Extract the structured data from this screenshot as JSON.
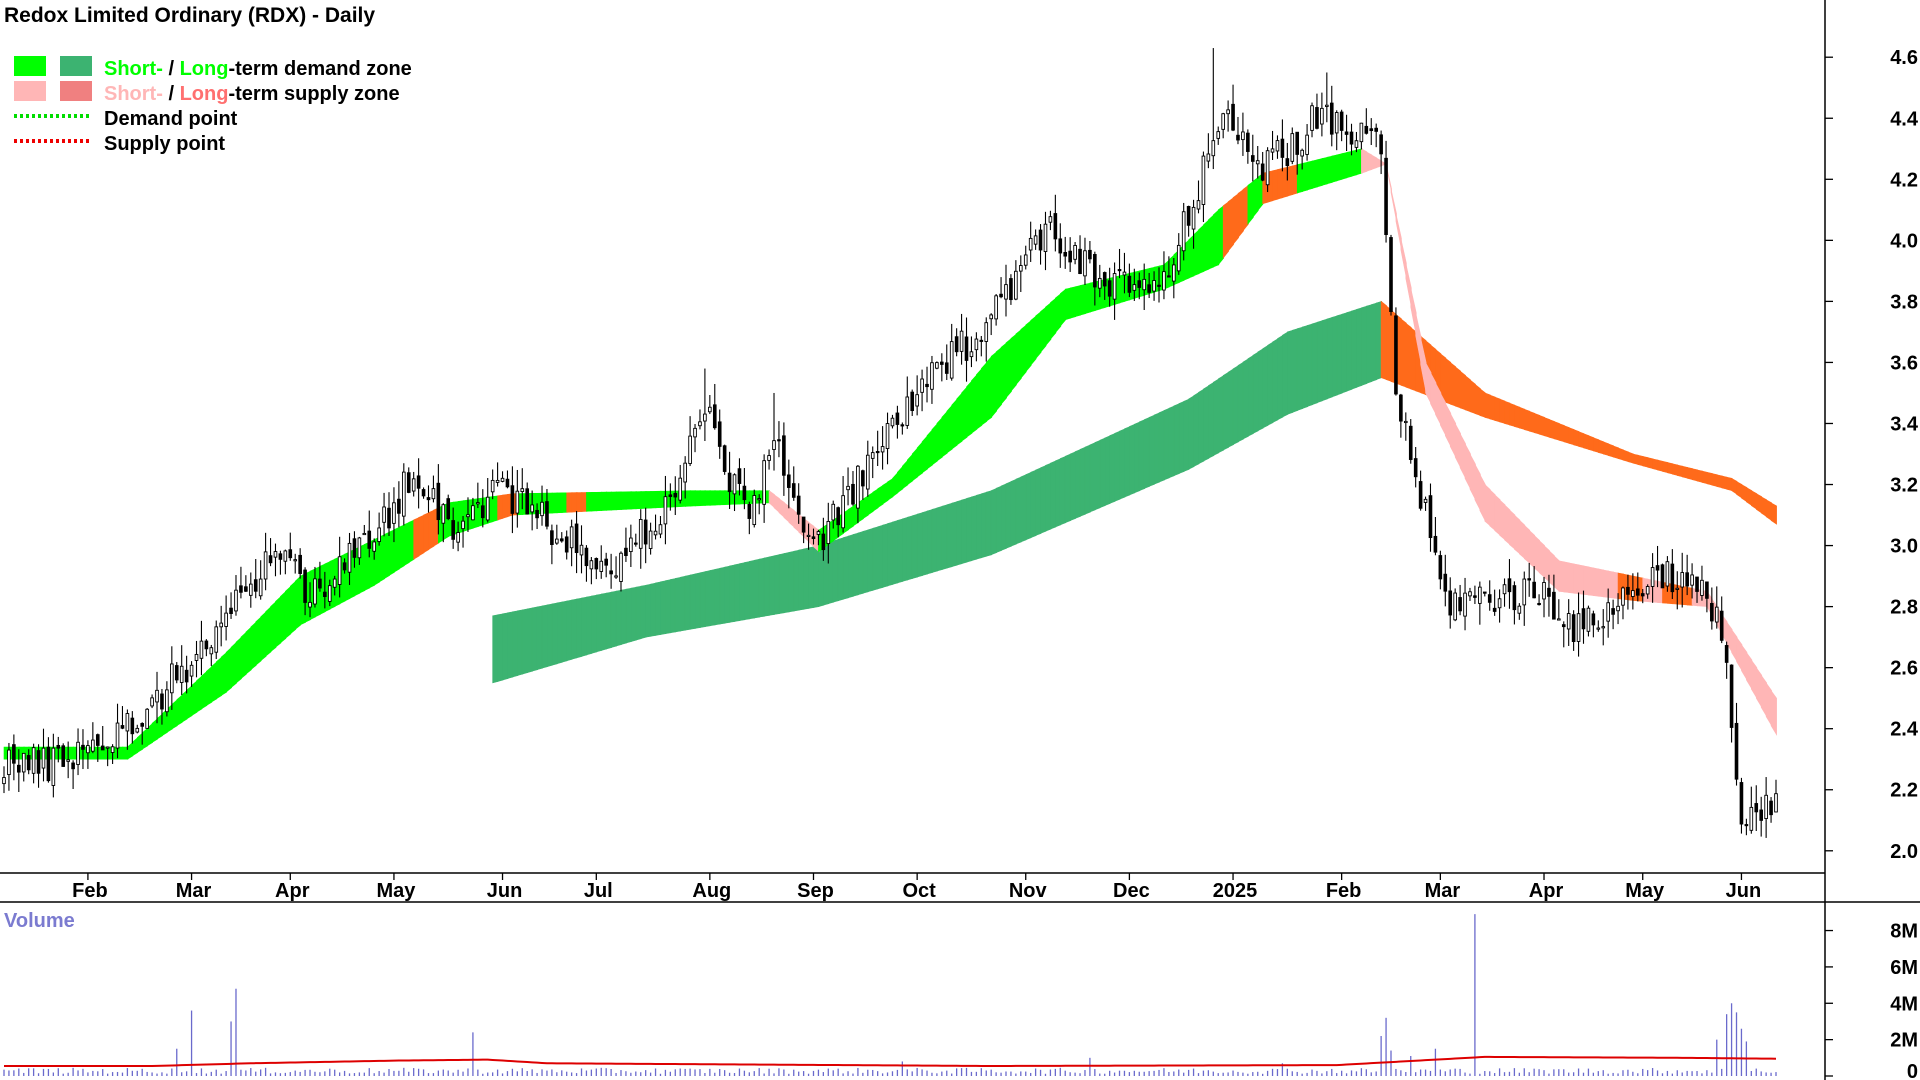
{
  "chart_data": {
    "type": "candlestick",
    "title": "Redox Limited Ordinary (RDX) - Daily",
    "legend": {
      "placement": "top-left",
      "items": [
        {
          "parts": [
            {
              "text": "Short-",
              "color": "#00ff00"
            },
            {
              "text": " / ",
              "color": "#000000"
            },
            {
              "text": "Long",
              "color": "#00ff00"
            },
            {
              "text": "-term demand zone",
              "color": "#000000"
            }
          ],
          "swatches": [
            "#00ff00",
            "#3cb371"
          ],
          "style": "box"
        },
        {
          "parts": [
            {
              "text": "Short-",
              "color": "#ffb6b6"
            },
            {
              "text": " / ",
              "color": "#000000"
            },
            {
              "text": "Long",
              "color": "#ff7070"
            },
            {
              "text": "-term supply zone",
              "color": "#000000"
            }
          ],
          "swatches": [
            "#ffb6b6",
            "#f08080"
          ],
          "style": "box"
        },
        {
          "parts": [
            {
              "text": "Demand point",
              "color": "#000000"
            }
          ],
          "swatches": [
            "#00dd00"
          ],
          "style": "dotted"
        },
        {
          "parts": [
            {
              "text": "Supply point",
              "color": "#000000"
            }
          ],
          "swatches": [
            "#ee0000"
          ],
          "style": "dotted"
        }
      ]
    },
    "price_axis": {
      "min": 1.96,
      "max": 4.64,
      "ticks": [
        2.0,
        2.2,
        2.4,
        2.6,
        2.8,
        3.0,
        3.2,
        3.4,
        3.6,
        3.8,
        4.0,
        4.2,
        4.4,
        4.6
      ],
      "position": "right"
    },
    "months": [
      "Feb",
      "Mar",
      "Apr",
      "May",
      "Jun",
      "Jul",
      "Aug",
      "Sep",
      "Oct",
      "Nov",
      "Dec",
      "2025",
      "Feb",
      "Mar",
      "Apr",
      "May",
      "Jun"
    ],
    "month_indices": [
      17,
      38,
      58,
      79,
      101,
      120,
      143,
      164,
      185,
      207,
      228,
      249,
      271,
      291,
      312,
      332,
      352
    ],
    "bar_count": 360,
    "price_path": [
      [
        0,
        2.3
      ],
      [
        8,
        2.28
      ],
      [
        25,
        2.4
      ],
      [
        45,
        2.75
      ],
      [
        55,
        3.0
      ],
      [
        62,
        2.85
      ],
      [
        75,
        3.02
      ],
      [
        83,
        3.25
      ],
      [
        92,
        3.05
      ],
      [
        100,
        3.2
      ],
      [
        112,
        3.05
      ],
      [
        122,
        2.9
      ],
      [
        135,
        3.15
      ],
      [
        142,
        3.45
      ],
      [
        150,
        3.1
      ],
      [
        157,
        3.35
      ],
      [
        163,
        2.98
      ],
      [
        170,
        3.12
      ],
      [
        181,
        3.42
      ],
      [
        197,
        3.7
      ],
      [
        212,
        4.05
      ],
      [
        222,
        3.85
      ],
      [
        235,
        3.85
      ],
      [
        248,
        4.45
      ],
      [
        255,
        4.22
      ],
      [
        266,
        4.4
      ],
      [
        279,
        4.3
      ],
      [
        282,
        3.5
      ],
      [
        292,
        2.82
      ],
      [
        312,
        2.85
      ],
      [
        319,
        2.72
      ],
      [
        336,
        2.92
      ],
      [
        347,
        2.8
      ],
      [
        349,
        2.6
      ],
      [
        352,
        2.06
      ],
      [
        359,
        2.15
      ]
    ],
    "zones": {
      "short_term": {
        "start": 0,
        "end": 359,
        "upper": [
          [
            0,
            2.34
          ],
          [
            25,
            2.34
          ],
          [
            45,
            2.65
          ],
          [
            60,
            2.9
          ],
          [
            75,
            3.02
          ],
          [
            90,
            3.14
          ],
          [
            103,
            3.17
          ],
          [
            140,
            3.18
          ],
          [
            155,
            3.18
          ],
          [
            165,
            3.05
          ],
          [
            180,
            3.22
          ],
          [
            200,
            3.62
          ],
          [
            215,
            3.84
          ],
          [
            235,
            3.92
          ],
          [
            246,
            4.1
          ],
          [
            255,
            4.22
          ],
          [
            275,
            4.3
          ],
          [
            280,
            4.25
          ],
          [
            288,
            3.6
          ],
          [
            300,
            3.2
          ],
          [
            315,
            2.95
          ],
          [
            330,
            2.9
          ],
          [
            345,
            2.85
          ],
          [
            359,
            2.5
          ]
        ],
        "lower": [
          [
            0,
            2.3
          ],
          [
            25,
            2.3
          ],
          [
            45,
            2.52
          ],
          [
            60,
            2.74
          ],
          [
            75,
            2.87
          ],
          [
            90,
            3.03
          ],
          [
            103,
            3.1
          ],
          [
            140,
            3.13
          ],
          [
            155,
            3.14
          ],
          [
            165,
            2.98
          ],
          [
            180,
            3.16
          ],
          [
            200,
            3.42
          ],
          [
            215,
            3.74
          ],
          [
            235,
            3.84
          ],
          [
            246,
            3.92
          ],
          [
            255,
            4.12
          ],
          [
            275,
            4.22
          ],
          [
            280,
            4.25
          ],
          [
            288,
            3.5
          ],
          [
            300,
            3.08
          ],
          [
            315,
            2.85
          ],
          [
            330,
            2.82
          ],
          [
            345,
            2.8
          ],
          [
            359,
            2.38
          ]
        ],
        "colors": {
          "demand": "#00ff00",
          "supply": "#ffb6b6",
          "overlap": "#ff6a1a"
        }
      },
      "long_term": {
        "start": 99,
        "end": 359,
        "upper": [
          [
            99,
            2.77
          ],
          [
            130,
            2.87
          ],
          [
            165,
            3.0
          ],
          [
            200,
            3.18
          ],
          [
            240,
            3.48
          ],
          [
            260,
            3.7
          ],
          [
            279,
            3.8
          ],
          [
            300,
            3.5
          ],
          [
            330,
            3.3
          ],
          [
            350,
            3.22
          ],
          [
            359,
            3.13
          ]
        ],
        "lower": [
          [
            99,
            2.55
          ],
          [
            130,
            2.7
          ],
          [
            165,
            2.8
          ],
          [
            200,
            2.97
          ],
          [
            240,
            3.25
          ],
          [
            260,
            3.43
          ],
          [
            279,
            3.55
          ],
          [
            300,
            3.42
          ],
          [
            330,
            3.27
          ],
          [
            350,
            3.18
          ],
          [
            359,
            3.07
          ]
        ],
        "colors": {
          "demand": "#3cb371",
          "supply": "#ff6a1a"
        }
      }
    },
    "volume": {
      "title": "Volume",
      "axis": {
        "min": 0,
        "max": 8800000,
        "ticks": [
          0,
          2000000,
          4000000,
          6000000,
          8000000
        ],
        "tick_labels": [
          "0",
          "2M",
          "4M",
          "6M",
          "8M"
        ]
      },
      "base": 0.3,
      "spikes": [
        [
          35,
          1.5
        ],
        [
          38,
          3.6
        ],
        [
          46,
          3.0
        ],
        [
          47,
          4.8
        ],
        [
          95,
          2.4
        ],
        [
          182,
          0.8
        ],
        [
          220,
          1.0
        ],
        [
          259,
          0.7
        ],
        [
          279,
          2.2
        ],
        [
          280,
          3.2
        ],
        [
          281,
          1.4
        ],
        [
          285,
          1.1
        ],
        [
          290,
          1.5
        ],
        [
          298,
          8.9
        ],
        [
          347,
          2.0
        ],
        [
          349,
          3.4
        ],
        [
          350,
          4.0
        ],
        [
          351,
          3.5
        ],
        [
          352,
          2.6
        ],
        [
          353,
          1.9
        ]
      ],
      "average": [
        [
          0,
          0.55
        ],
        [
          30,
          0.55
        ],
        [
          50,
          0.7
        ],
        [
          80,
          0.85
        ],
        [
          98,
          0.9
        ],
        [
          110,
          0.7
        ],
        [
          200,
          0.55
        ],
        [
          270,
          0.6
        ],
        [
          300,
          1.05
        ],
        [
          340,
          1.0
        ],
        [
          359,
          0.95
        ]
      ],
      "colors": {
        "bar": "#6a6acc",
        "average": "#dd0000"
      }
    }
  }
}
